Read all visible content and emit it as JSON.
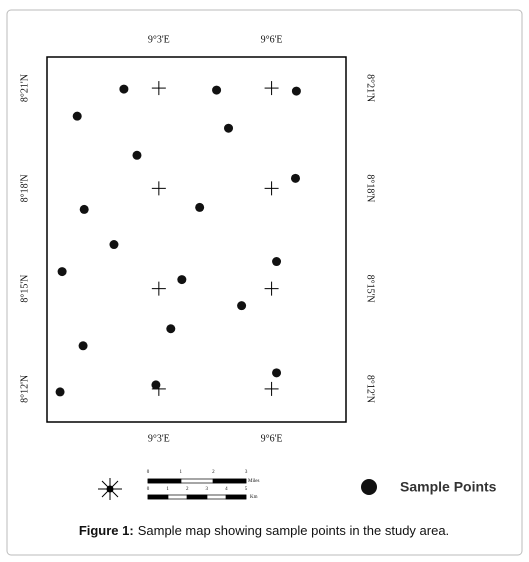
{
  "chart_data": {
    "type": "scatter",
    "x": [
      9.0345,
      9.0756,
      9.111,
      9.0138,
      9.0809,
      9.0403,
      9.1106,
      9.0169,
      9.0681,
      9.0301,
      9.1022,
      9.0071,
      9.0602,
      9.0867,
      9.0553,
      9.0164,
      9.1022,
      9.0487,
      9.0062
    ],
    "series": [
      {
        "name": "Sample Points",
        "color": "#111111",
        "values": [
          8.3495,
          8.349,
          8.3485,
          8.336,
          8.33,
          8.3165,
          8.305,
          8.2895,
          8.2905,
          8.272,
          8.2635,
          8.2585,
          8.2545,
          8.2415,
          8.23,
          8.2215,
          8.208,
          8.202,
          8.1985
        ]
      }
    ],
    "xlim": [
      9.0004,
      9.133
    ],
    "ylim": [
      8.1835,
      8.3655
    ],
    "xticks": [
      {
        "value": 9.05,
        "label": "9°3'E"
      },
      {
        "value": 9.1,
        "label": "9°6'E"
      }
    ],
    "yticks": [
      {
        "value": 8.35,
        "label": "8°21'N"
      },
      {
        "value": 8.3,
        "label": "8°18'N"
      },
      {
        "value": 8.25,
        "label": "8°15'N"
      },
      {
        "value": 8.2,
        "label": "8°12'N"
      }
    ],
    "grid": true,
    "legend": "lower right",
    "scale_bar": {
      "miles": [
        "0",
        "1",
        "2",
        "3"
      ],
      "miles_unit": "Miles",
      "km": [
        "0",
        "1",
        "2",
        "3",
        "4",
        "5"
      ],
      "km_unit": "Km"
    },
    "caption_label": "Figure 1:",
    "caption": "Sample map showing sample points in the study area."
  }
}
